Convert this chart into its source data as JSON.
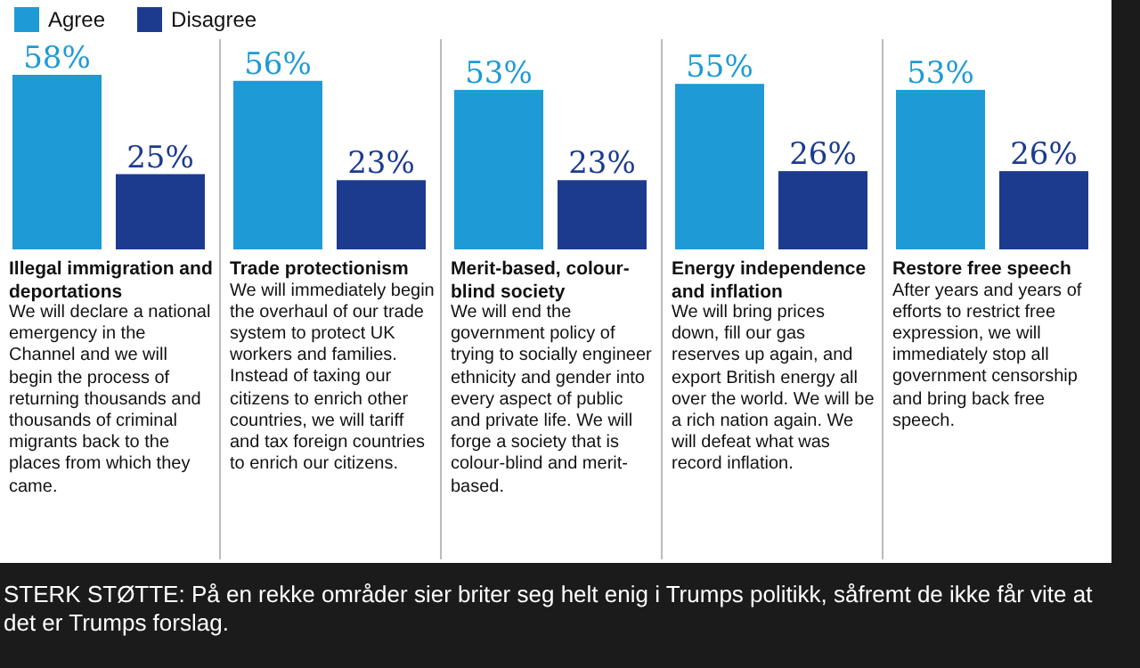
{
  "chart_data": {
    "type": "bar",
    "categories": [
      "Illegal immigration and deportations",
      "Trade protectionism",
      "Merit-based, colour-blind society",
      "Energy independence and inflation",
      "Restore free speech"
    ],
    "series": [
      {
        "name": "Agree",
        "color": "#1e9ad6",
        "values": [
          58,
          56,
          53,
          55,
          53
        ],
        "value_labels": [
          "58%",
          "56%",
          "53%",
          "55%",
          "53%"
        ]
      },
      {
        "name": "Disagree",
        "color": "#1c3b8f",
        "values": [
          25,
          23,
          23,
          26,
          26
        ],
        "value_labels": [
          "25%",
          "23%",
          "23%",
          "26%",
          "26%"
        ]
      }
    ],
    "legend": "top left",
    "annotations": [
      "We will declare a national emergency in the Channel and we will begin the process of returning thousands and thousands of criminal migrants back to the places from which they came.",
      "We will immediately begin the overhaul of our trade system to protect UK workers and families. Instead of taxing our citizens to enrich other countries, we will tariff and tax foreign countries to enrich our citizens.",
      "We will end the government policy of trying to socially engineer ethnicity and gender into every aspect of public and private life. We will forge a society that is colour-blind and merit-based.",
      "We will bring prices down, fill our gas reserves up again, and export British energy all over the world. We will be a rich nation again. We will defeat what was record inflation.",
      "After years and years of efforts to restrict free expression, we will immediately stop all government censorship and bring back free speech.",
      "STERK STØTTE: På en rekke områder sier briter seg helt enig i Trumps politikk, såfremt de ikke får vite at det er Trumps forslag."
    ]
  }
}
